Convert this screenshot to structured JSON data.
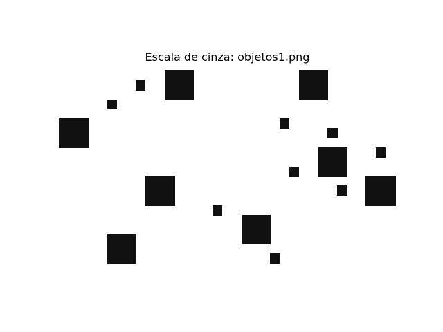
{
  "figure": {
    "title": "Escala de cinza: objetos1.png",
    "object_color": "#111111",
    "background_color": "#ffffff"
  }
}
